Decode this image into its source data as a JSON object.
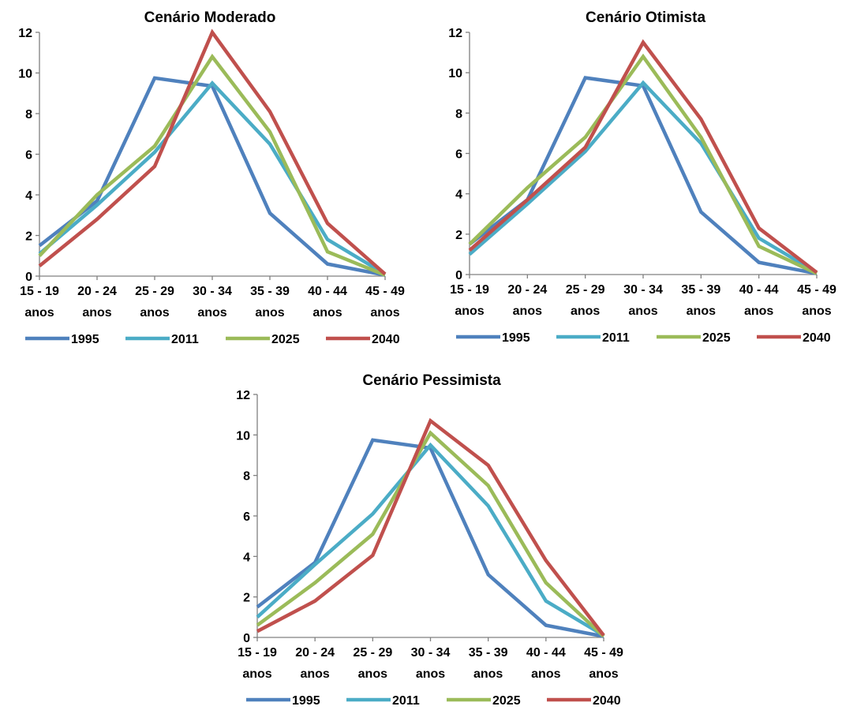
{
  "chart_data": [
    {
      "type": "line",
      "title": "Cenário Moderado",
      "categories": [
        [
          "15 - 19",
          "anos"
        ],
        [
          "20 - 24",
          "anos"
        ],
        [
          "25 - 29",
          "anos"
        ],
        [
          "30 - 34",
          "anos"
        ],
        [
          "35 - 39",
          "anos"
        ],
        [
          "40 - 44",
          "anos"
        ],
        [
          "45 - 49",
          "anos"
        ]
      ],
      "ylim": [
        0,
        12
      ],
      "yticks": [
        0,
        2,
        4,
        6,
        8,
        10,
        12
      ],
      "legend_position": "bottom",
      "series": [
        {
          "name": "1995",
          "color": "#4F81BD",
          "values": [
            1.5,
            3.7,
            9.75,
            9.35,
            3.1,
            0.6,
            0.05
          ]
        },
        {
          "name": "2011",
          "color": "#4BACC6",
          "values": [
            1.1,
            3.5,
            6.1,
            9.5,
            6.5,
            1.8,
            0.1
          ]
        },
        {
          "name": "2025",
          "color": "#9BBB59",
          "values": [
            1.0,
            4.0,
            6.4,
            10.8,
            7.1,
            1.2,
            0.05
          ]
        },
        {
          "name": "2040",
          "color": "#C0504D",
          "values": [
            0.5,
            2.8,
            5.4,
            12.0,
            8.1,
            2.6,
            0.1
          ]
        }
      ]
    },
    {
      "type": "line",
      "title": "Cenário Otimista",
      "categories": [
        [
          "15 - 19",
          "anos"
        ],
        [
          "20 - 24",
          "anos"
        ],
        [
          "25 - 29",
          "anos"
        ],
        [
          "30 - 34",
          "anos"
        ],
        [
          "35 - 39",
          "anos"
        ],
        [
          "40 - 44",
          "anos"
        ],
        [
          "45 - 49",
          "anos"
        ]
      ],
      "ylim": [
        0,
        12
      ],
      "yticks": [
        0,
        2,
        4,
        6,
        8,
        10,
        12
      ],
      "legend_position": "bottom",
      "series": [
        {
          "name": "1995",
          "color": "#4F81BD",
          "values": [
            1.5,
            3.7,
            9.75,
            9.35,
            3.1,
            0.6,
            0.05
          ]
        },
        {
          "name": "2011",
          "color": "#4BACC6",
          "values": [
            1.0,
            3.5,
            6.1,
            9.5,
            6.5,
            1.8,
            0.1
          ]
        },
        {
          "name": "2025",
          "color": "#9BBB59",
          "values": [
            1.5,
            4.3,
            6.8,
            10.8,
            6.8,
            1.4,
            0.05
          ]
        },
        {
          "name": "2040",
          "color": "#C0504D",
          "values": [
            1.2,
            3.7,
            6.3,
            11.5,
            7.7,
            2.3,
            0.1
          ]
        }
      ]
    },
    {
      "type": "line",
      "title": "Cenário Pessimista",
      "categories": [
        [
          "15 - 19",
          "anos"
        ],
        [
          "20 - 24",
          "anos"
        ],
        [
          "25 - 29",
          "anos"
        ],
        [
          "30 - 34",
          "anos"
        ],
        [
          "35 - 39",
          "anos"
        ],
        [
          "40 - 44",
          "anos"
        ],
        [
          "45 - 49",
          "anos"
        ]
      ],
      "ylim": [
        0,
        12
      ],
      "yticks": [
        0,
        2,
        4,
        6,
        8,
        10,
        12
      ],
      "legend_position": "bottom",
      "series": [
        {
          "name": "1995",
          "color": "#4F81BD",
          "values": [
            1.5,
            3.7,
            9.75,
            9.35,
            3.1,
            0.6,
            0.05
          ]
        },
        {
          "name": "2011",
          "color": "#4BACC6",
          "values": [
            1.0,
            3.6,
            6.1,
            9.5,
            6.5,
            1.8,
            0.1
          ]
        },
        {
          "name": "2025",
          "color": "#9BBB59",
          "values": [
            0.6,
            2.7,
            5.1,
            10.1,
            7.5,
            2.7,
            0.05
          ]
        },
        {
          "name": "2040",
          "color": "#C0504D",
          "values": [
            0.3,
            1.8,
            4.05,
            10.7,
            8.5,
            3.8,
            0.1
          ]
        }
      ]
    }
  ]
}
